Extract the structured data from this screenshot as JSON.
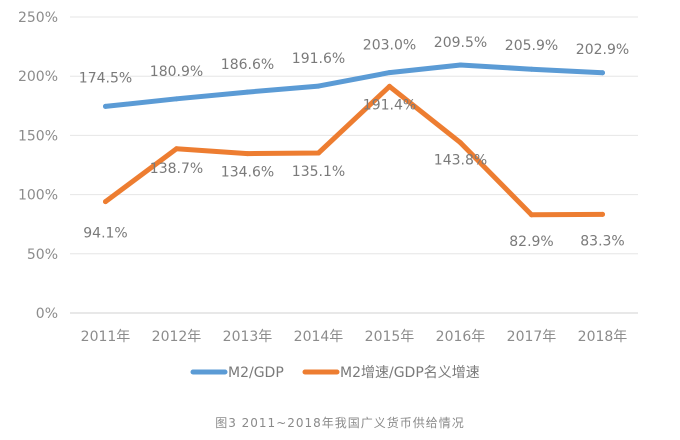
{
  "chart_data": {
    "type": "line",
    "categories": [
      "2011年",
      "2012年",
      "2013年",
      "2014年",
      "2015年",
      "2016年",
      "2017年",
      "2018年"
    ],
    "ylim": [
      0,
      250
    ],
    "yticks": [
      0,
      50,
      100,
      150,
      200,
      250
    ],
    "ytick_labels": [
      "0%",
      "50%",
      "100%",
      "150%",
      "200%",
      "250%"
    ],
    "grid": true,
    "legend_position": "bottom",
    "series": [
      {
        "name": "M2/GDP",
        "color": "#5b9bd5",
        "values": [
          174.5,
          180.9,
          186.6,
          191.6,
          203.0,
          209.5,
          205.9,
          202.9
        ],
        "labels": [
          "174.5%",
          "180.9%",
          "186.6%",
          "191.6%",
          "203.0%",
          "209.5%",
          "205.9%",
          "202.9%"
        ]
      },
      {
        "name": "M2增速/GDP名义增速",
        "color": "#ed7d31",
        "values": [
          94.1,
          138.7,
          134.6,
          135.1,
          191.4,
          143.8,
          82.9,
          83.3
        ],
        "labels": [
          "94.1%",
          "138.7%",
          "134.6%",
          "135.1%",
          "191.4%",
          "143.8%",
          "82.9%",
          "83.3%"
        ]
      }
    ]
  },
  "caption": "图3  2011~2018年我国广义货币供给情况"
}
